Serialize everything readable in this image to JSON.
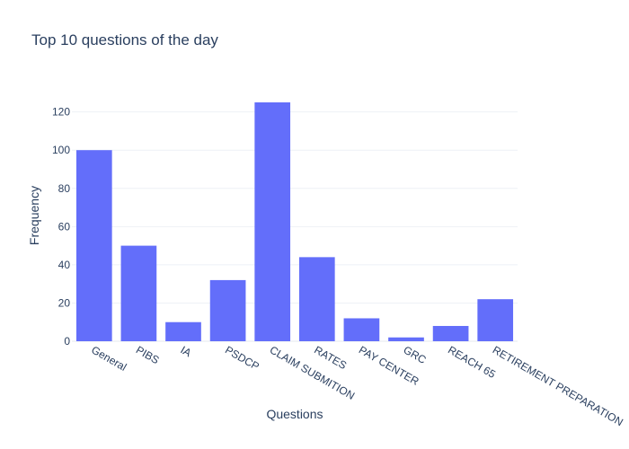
{
  "colors": {
    "bar": "#636efa",
    "text": "#2a3f5f",
    "grid": "#eef1f6"
  },
  "chart_data": {
    "type": "bar",
    "title": "Top 10 questions of the day",
    "xlabel": "Questions",
    "ylabel": "Frequency",
    "categories": [
      "General",
      "PIBS",
      "IA",
      "PSDCP",
      "CLAIM SUBMITION",
      "RATES",
      "PAY CENTER",
      "GRC",
      "REACH 65",
      "RETIREMENT PREPARATION"
    ],
    "values": [
      100,
      50,
      10,
      32,
      125,
      44,
      12,
      2,
      8,
      22
    ],
    "ylim": [
      0,
      131.58
    ],
    "yticks": [
      0,
      20,
      40,
      60,
      80,
      100,
      120
    ],
    "grid": true,
    "legend": "none"
  }
}
